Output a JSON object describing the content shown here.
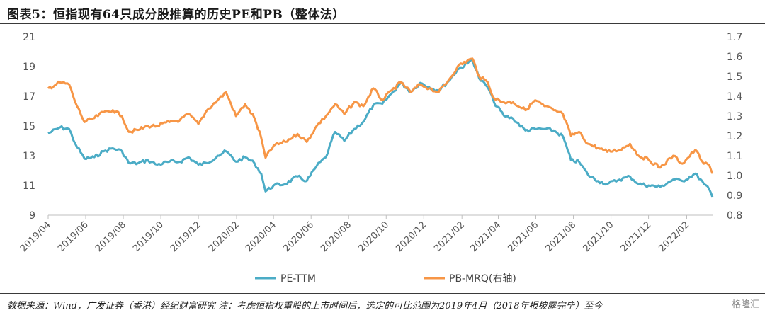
{
  "header": {
    "title": "图表5：恒指现有64只成分股推算的历史PE和PB（整体法）"
  },
  "footer": {
    "note": "数据来源：Wind，广发证券（香港）经纪财富研究 注：考虑恒指权重股的上市时间后，选定的可比范围为2019年4月（2018年报披露完毕）至今",
    "watermark": "格隆汇"
  },
  "colors": {
    "pe": "#4BACC6",
    "pb": "#F79646"
  },
  "chart_data": {
    "type": "line",
    "x_tick_labels": [
      "2019/04",
      "2019/06",
      "2019/08",
      "2019/10",
      "2019/12",
      "2020/02",
      "2020/04",
      "2020/06",
      "2020/08",
      "2020/10",
      "2020/12",
      "2021/02",
      "2021/04",
      "2021/06",
      "2021/08",
      "2021/10",
      "2021/12",
      "2022/02"
    ],
    "y_left": {
      "ticks": [
        9,
        11,
        13,
        15,
        17,
        19,
        21
      ],
      "range": [
        9,
        21
      ]
    },
    "y_right": {
      "ticks": [
        "0.8",
        "0.9",
        "1.0",
        "1.1",
        "1.2",
        "1.3",
        "1.4",
        "1.5",
        "1.6",
        "1.7"
      ],
      "range": [
        0.8,
        1.7
      ]
    },
    "legend_position": "bottom",
    "series": [
      {
        "name": "PE-TTM",
        "axis": "left",
        "points": [
          [
            "2019/04/01",
            14.5
          ],
          [
            "2019/04/20",
            14.9
          ],
          [
            "2019/05/05",
            14.8
          ],
          [
            "2019/05/15",
            13.8
          ],
          [
            "2019/05/30",
            12.8
          ],
          [
            "2019/06/15",
            12.9
          ],
          [
            "2019/06/30",
            13.3
          ],
          [
            "2019/07/15",
            13.5
          ],
          [
            "2019/07/30",
            13.3
          ],
          [
            "2019/08/10",
            12.5
          ],
          [
            "2019/08/25",
            12.5
          ],
          [
            "2019/09/10",
            12.7
          ],
          [
            "2019/09/25",
            12.4
          ],
          [
            "2019/10/15",
            12.6
          ],
          [
            "2019/11/01",
            12.6
          ],
          [
            "2019/11/15",
            12.9
          ],
          [
            "2019/12/01",
            12.4
          ],
          [
            "2019/12/15",
            12.5
          ],
          [
            "2020/01/01",
            13.0
          ],
          [
            "2020/01/15",
            13.3
          ],
          [
            "2020/01/31",
            12.6
          ],
          [
            "2020/02/15",
            12.9
          ],
          [
            "2020/03/01",
            12.5
          ],
          [
            "2020/03/12",
            11.8
          ],
          [
            "2020/03/19",
            10.6
          ],
          [
            "2020/04/01",
            11.0
          ],
          [
            "2020/04/20",
            11.1
          ],
          [
            "2020/05/10",
            11.6
          ],
          [
            "2020/05/25",
            11.3
          ],
          [
            "2020/06/10",
            12.3
          ],
          [
            "2020/06/25",
            12.9
          ],
          [
            "2020/07/10",
            14.6
          ],
          [
            "2020/07/25",
            14.0
          ],
          [
            "2020/08/10",
            14.8
          ],
          [
            "2020/08/25",
            15.3
          ],
          [
            "2020/09/10",
            16.4
          ],
          [
            "2020/09/25",
            16.5
          ],
          [
            "2020/10/10",
            17.2
          ],
          [
            "2020/10/25",
            17.9
          ],
          [
            "2020/11/10",
            17.3
          ],
          [
            "2020/11/25",
            17.9
          ],
          [
            "2020/12/10",
            17.6
          ],
          [
            "2020/12/25",
            17.4
          ],
          [
            "2021/01/10",
            18.0
          ],
          [
            "2021/01/25",
            18.8
          ],
          [
            "2021/02/10",
            19.2
          ],
          [
            "2021/02/18",
            19.5
          ],
          [
            "2021/03/01",
            18.2
          ],
          [
            "2021/03/15",
            17.6
          ],
          [
            "2021/03/25",
            16.6
          ],
          [
            "2021/04/10",
            15.7
          ],
          [
            "2021/04/25",
            15.5
          ],
          [
            "2021/05/15",
            14.7
          ],
          [
            "2021/05/31",
            14.8
          ],
          [
            "2021/06/15",
            14.8
          ],
          [
            "2021/06/30",
            14.7
          ],
          [
            "2021/07/15",
            14.3
          ],
          [
            "2021/07/28",
            12.7
          ],
          [
            "2021/08/10",
            12.6
          ],
          [
            "2021/08/25",
            11.7
          ],
          [
            "2021/09/10",
            11.3
          ],
          [
            "2021/09/25",
            11.1
          ],
          [
            "2021/10/15",
            11.4
          ],
          [
            "2021/11/01",
            11.6
          ],
          [
            "2021/11/15",
            11.1
          ],
          [
            "2021/12/01",
            11.0
          ],
          [
            "2021/12/20",
            10.9
          ],
          [
            "2022/01/10",
            11.4
          ],
          [
            "2022/01/25",
            11.3
          ],
          [
            "2022/02/15",
            11.8
          ],
          [
            "2022/03/01",
            11.1
          ],
          [
            "2022/03/10",
            10.7
          ],
          [
            "2022/03/15",
            10.2
          ]
        ]
      },
      {
        "name": "PB-MRQ(右轴)",
        "axis": "right",
        "points": [
          [
            "2019/04/01",
            1.44
          ],
          [
            "2019/04/20",
            1.47
          ],
          [
            "2019/05/05",
            1.46
          ],
          [
            "2019/05/15",
            1.37
          ],
          [
            "2019/05/30",
            1.27
          ],
          [
            "2019/06/15",
            1.29
          ],
          [
            "2019/06/30",
            1.32
          ],
          [
            "2019/07/15",
            1.33
          ],
          [
            "2019/07/30",
            1.3
          ],
          [
            "2019/08/10",
            1.22
          ],
          [
            "2019/08/25",
            1.23
          ],
          [
            "2019/09/10",
            1.25
          ],
          [
            "2019/09/25",
            1.25
          ],
          [
            "2019/10/15",
            1.27
          ],
          [
            "2019/11/01",
            1.28
          ],
          [
            "2019/11/15",
            1.31
          ],
          [
            "2019/12/01",
            1.26
          ],
          [
            "2019/12/15",
            1.33
          ],
          [
            "2020/01/01",
            1.38
          ],
          [
            "2020/01/15",
            1.42
          ],
          [
            "2020/01/31",
            1.3
          ],
          [
            "2020/02/15",
            1.36
          ],
          [
            "2020/03/01",
            1.29
          ],
          [
            "2020/03/12",
            1.19
          ],
          [
            "2020/03/19",
            1.09
          ],
          [
            "2020/04/01",
            1.15
          ],
          [
            "2020/04/20",
            1.17
          ],
          [
            "2020/05/10",
            1.21
          ],
          [
            "2020/05/25",
            1.17
          ],
          [
            "2020/06/10",
            1.25
          ],
          [
            "2020/06/25",
            1.3
          ],
          [
            "2020/07/10",
            1.36
          ],
          [
            "2020/07/25",
            1.31
          ],
          [
            "2020/08/10",
            1.37
          ],
          [
            "2020/08/25",
            1.35
          ],
          [
            "2020/09/10",
            1.44
          ],
          [
            "2020/09/25",
            1.38
          ],
          [
            "2020/10/10",
            1.43
          ],
          [
            "2020/10/25",
            1.47
          ],
          [
            "2020/11/10",
            1.42
          ],
          [
            "2020/11/25",
            1.46
          ],
          [
            "2020/12/10",
            1.44
          ],
          [
            "2020/12/25",
            1.42
          ],
          [
            "2021/01/10",
            1.48
          ],
          [
            "2021/01/25",
            1.55
          ],
          [
            "2021/02/10",
            1.58
          ],
          [
            "2021/02/18",
            1.59
          ],
          [
            "2021/03/01",
            1.5
          ],
          [
            "2021/03/15",
            1.47
          ],
          [
            "2021/03/25",
            1.39
          ],
          [
            "2021/04/10",
            1.37
          ],
          [
            "2021/04/25",
            1.37
          ],
          [
            "2021/05/15",
            1.33
          ],
          [
            "2021/05/31",
            1.38
          ],
          [
            "2021/06/15",
            1.35
          ],
          [
            "2021/06/30",
            1.33
          ],
          [
            "2021/07/15",
            1.31
          ],
          [
            "2021/07/28",
            1.2
          ],
          [
            "2021/08/10",
            1.22
          ],
          [
            "2021/08/25",
            1.16
          ],
          [
            "2021/09/10",
            1.14
          ],
          [
            "2021/09/25",
            1.12
          ],
          [
            "2021/10/15",
            1.13
          ],
          [
            "2021/11/01",
            1.16
          ],
          [
            "2021/11/15",
            1.1
          ],
          [
            "2021/12/01",
            1.08
          ],
          [
            "2021/12/20",
            1.04
          ],
          [
            "2022/01/10",
            1.1
          ],
          [
            "2022/01/25",
            1.06
          ],
          [
            "2022/02/15",
            1.13
          ],
          [
            "2022/03/01",
            1.06
          ],
          [
            "2022/03/10",
            1.05
          ],
          [
            "2022/03/15",
            1.01
          ]
        ]
      }
    ]
  }
}
